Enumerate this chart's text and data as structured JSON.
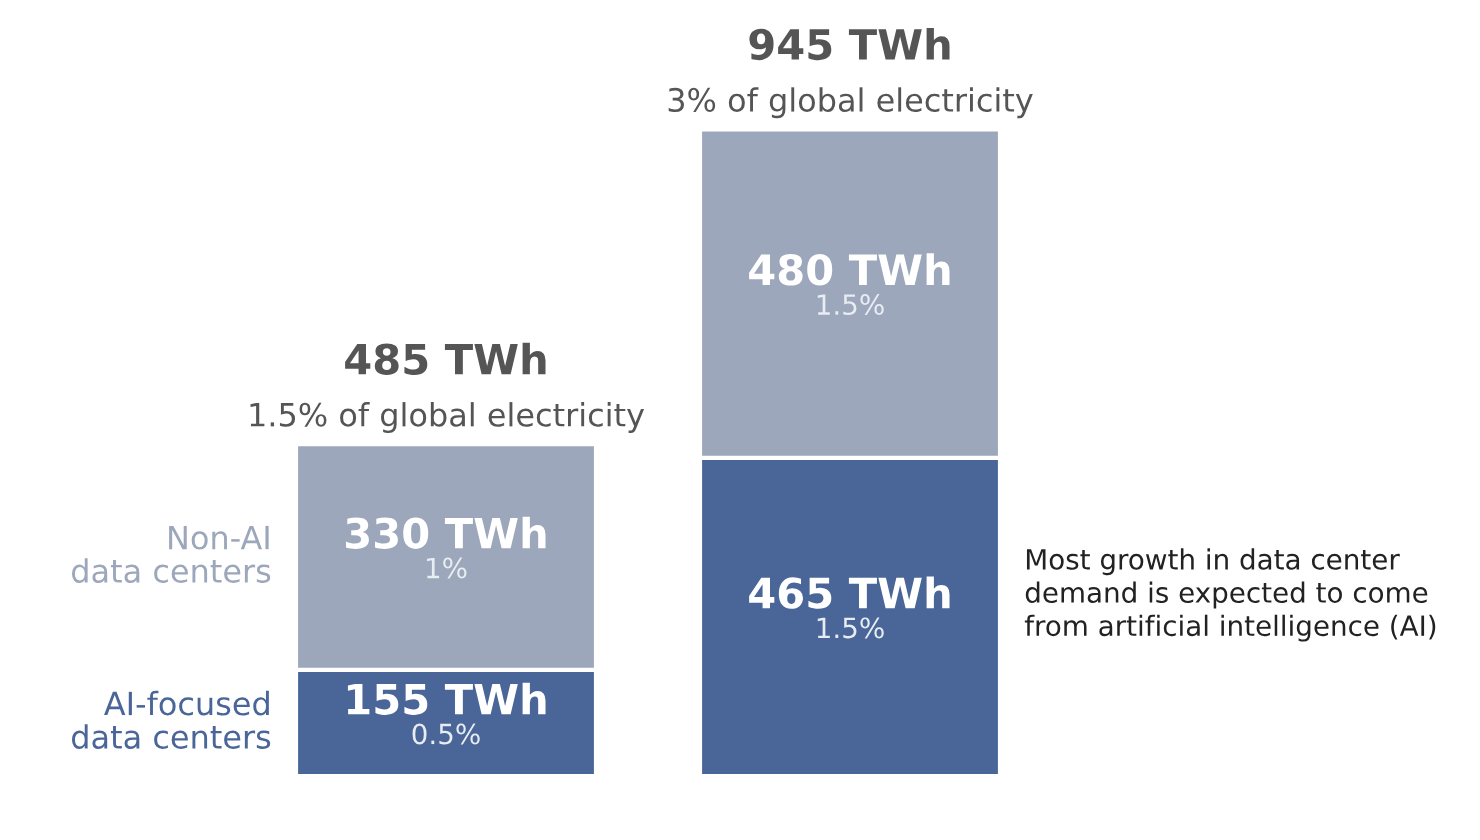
{
  "chart_data": {
    "type": "bar",
    "stacked": true,
    "categories": [
      null,
      null
    ],
    "series": [
      {
        "name": "AI-focused\ndata centers",
        "color": "#4a6699",
        "values": [
          155,
          465
        ],
        "value_labels": [
          "155 TWh\n0.5%",
          "465 TWh\n1.5%"
        ]
      },
      {
        "name": "Non-AI\ndata centers",
        "color": "#9ca7bb",
        "values": [
          330,
          480
        ],
        "value_labels": [
          "330 TWh\n1%",
          "480 TWh\n1.5%"
        ]
      }
    ],
    "totals": [
      "485 TWh\n1.5% of global electricity",
      "945 TWh\n3% of global electricity"
    ],
    "annotations": [
      "Most growth in data center\ndemand is expected to come\nfrom artificial intelligence (AI)"
    ],
    "legend": false
  }
}
